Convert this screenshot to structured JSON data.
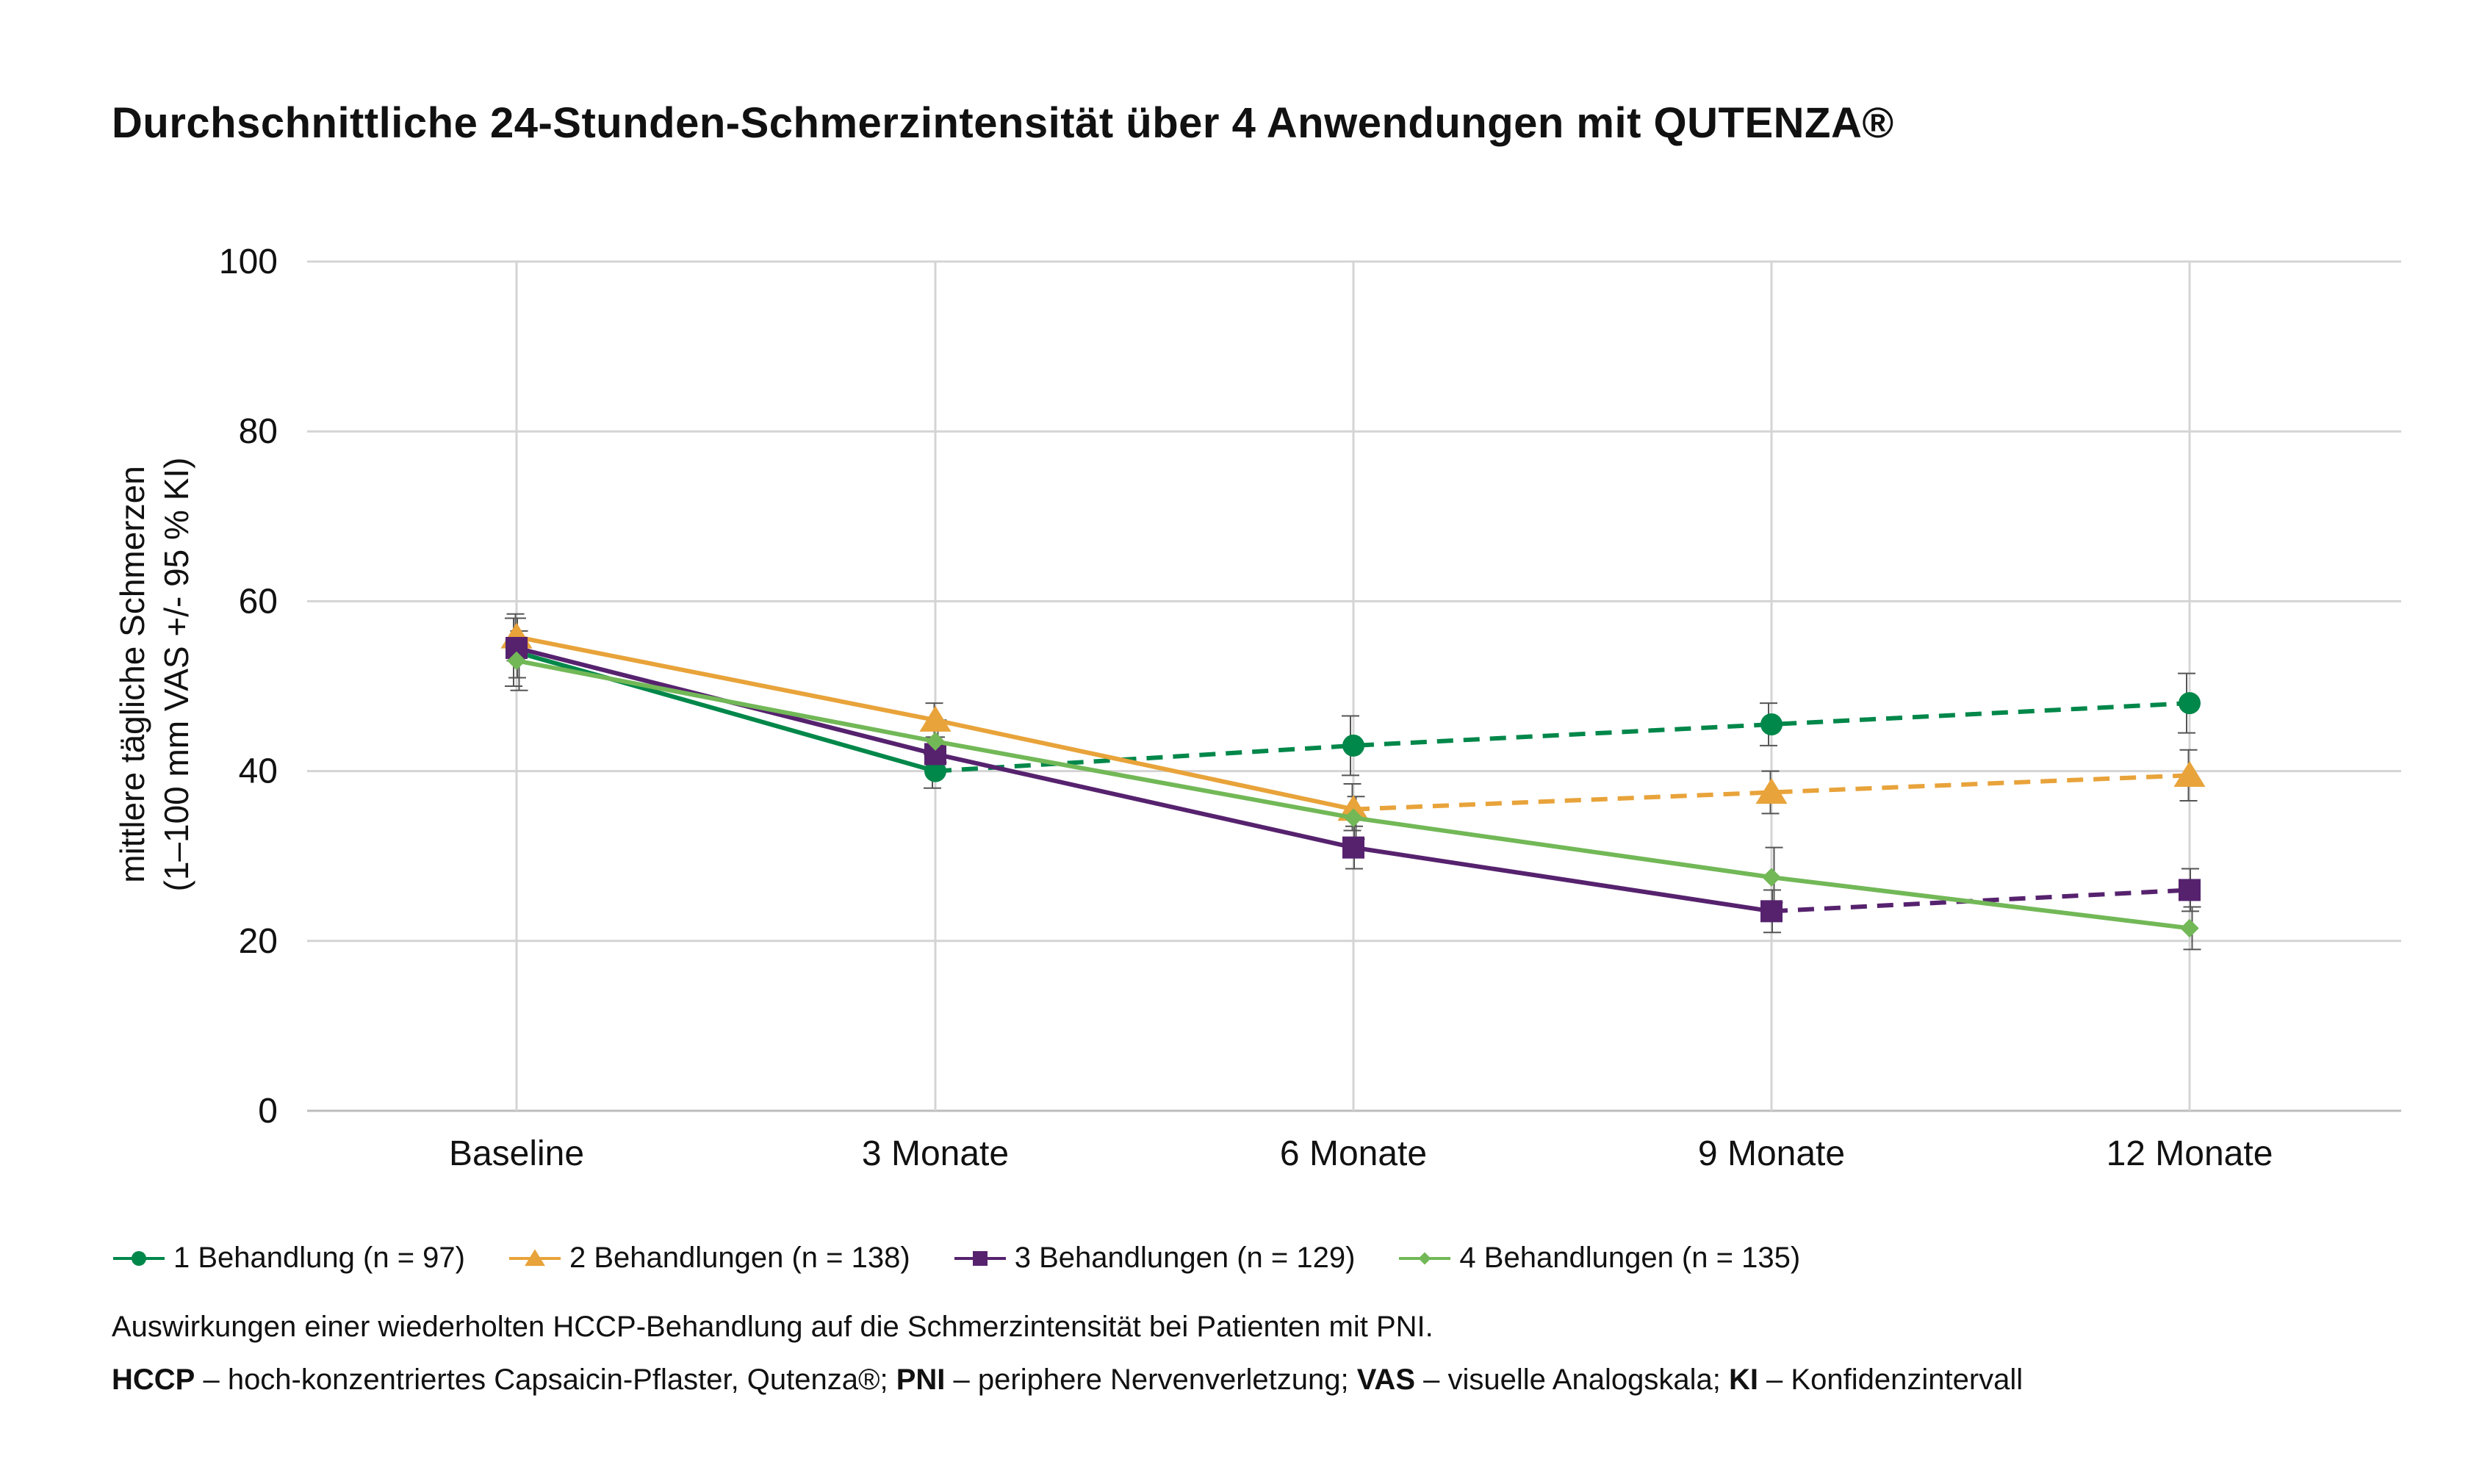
{
  "title": "Durchschnittliche 24-Stunden-Schmerzintensität über 4 Anwendungen mit QUTENZA®",
  "chart_data": {
    "type": "line",
    "title": "Durchschnittliche 24-Stunden-Schmerzintensität über 4 Anwendungen mit QUTENZA®",
    "ylabel_line1": "mittlere tägliche Schmerzen",
    "ylabel_line2": "(1–100 mm VAS +/- 95 % KI)",
    "xlabel": "",
    "categories": [
      "Baseline",
      "3 Monate",
      "6 Monate",
      "9 Monate",
      "12 Monate"
    ],
    "ylim": [
      0,
      100
    ],
    "yticks": [
      0,
      20,
      40,
      60,
      80,
      100
    ],
    "grid": true,
    "legend_position": "bottom",
    "series": [
      {
        "name": "1 Behandlung (n = 97)",
        "color": "#00874a",
        "marker": "circle",
        "values": [
          54,
          40,
          43,
          45.5,
          48
        ],
        "ci_low": [
          50,
          38,
          39.5,
          43,
          44.5
        ],
        "ci_high": [
          58,
          42,
          46.5,
          48,
          51.5
        ],
        "solid_until_index": 1
      },
      {
        "name": "2 Behandlungen (n = 138)",
        "color": "#e8a33a",
        "marker": "triangle",
        "values": [
          55.8,
          46,
          35.5,
          37.5,
          39.5
        ],
        "ci_low": [
          53,
          44,
          33,
          35,
          36.5
        ],
        "ci_high": [
          58.5,
          48,
          38.5,
          40,
          42.5
        ],
        "solid_until_index": 2
      },
      {
        "name": "3 Behandlungen (n = 129)",
        "color": "#56226e",
        "marker": "square",
        "values": [
          54.5,
          42,
          31,
          23.5,
          26
        ],
        "ci_low": [
          51,
          40,
          28.5,
          21,
          23.5
        ],
        "ci_high": [
          58,
          44,
          33.5,
          26,
          28.5
        ],
        "solid_until_index": 3
      },
      {
        "name": "4 Behandlungen (n = 135)",
        "color": "#72b857",
        "marker": "diamond",
        "values": [
          53,
          43.5,
          34.5,
          27.5,
          21.5
        ],
        "ci_low": [
          49.5,
          41,
          32,
          24.5,
          19
        ],
        "ci_high": [
          56.5,
          46,
          37,
          31,
          24
        ],
        "solid_until_index": 4
      }
    ]
  },
  "legend": [
    {
      "label": "1 Behandlung (n = 97)",
      "color": "#00874a",
      "marker": "circle"
    },
    {
      "label": "2 Behandlungen (n = 138)",
      "color": "#e8a33a",
      "marker": "triangle"
    },
    {
      "label": "3 Behandlungen (n = 129)",
      "color": "#56226e",
      "marker": "square"
    },
    {
      "label": "4 Behandlungen (n = 135)",
      "color": "#72b857",
      "marker": "diamond"
    }
  ],
  "footnote": "Auswirkungen einer wiederholten HCCP-Behandlung auf die Schmerzintensität bei Patienten mit PNI.",
  "abbreviations": [
    {
      "abbr": "HCCP",
      "text": " – hoch-konzentriertes Capsaicin-Pflaster, Qutenza®; "
    },
    {
      "abbr": "PNI",
      "text": " – periphere Nervenverletzung; "
    },
    {
      "abbr": "VAS",
      "text": " – visuelle Analogskala; "
    },
    {
      "abbr": "KI",
      "text": " – Konfidenzintervall"
    }
  ]
}
